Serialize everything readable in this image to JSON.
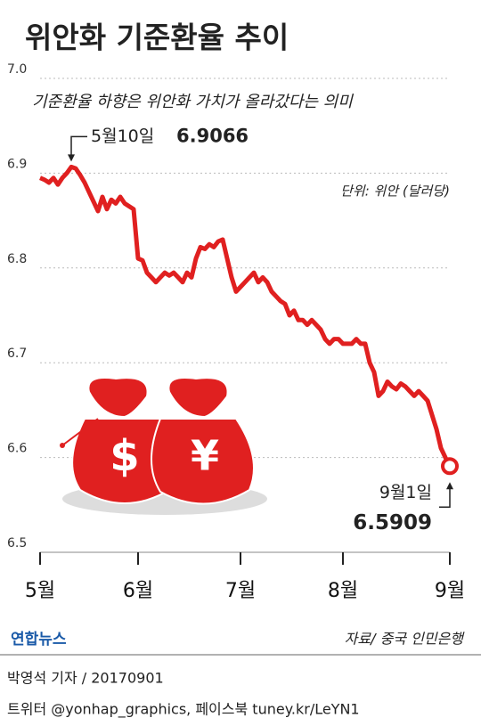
{
  "chart_data": {
    "type": "line",
    "title": "위안화 기준환율 추이",
    "subtitle": "기준환율 하향은 위안화 가치가 올라갔다는 의미",
    "unit": "단위: 위안 (달러당)",
    "categories": [
      "5월",
      null,
      null,
      null,
      null,
      null,
      null,
      null,
      null,
      null,
      null,
      null,
      null,
      null,
      null,
      null,
      null,
      null,
      null,
      null,
      null,
      null,
      "6월",
      null,
      null,
      null,
      null,
      null,
      null,
      null,
      null,
      null,
      null,
      null,
      null,
      null,
      null,
      null,
      null,
      null,
      null,
      null,
      null,
      null,
      null,
      "7월",
      null,
      null,
      null,
      null,
      null,
      null,
      null,
      null,
      null,
      null,
      null,
      null,
      null,
      null,
      null,
      null,
      null,
      null,
      null,
      null,
      null,
      null,
      "8월",
      null,
      null,
      null,
      null,
      null,
      null,
      null,
      null,
      null,
      null,
      null,
      null,
      null,
      null,
      null,
      null,
      null,
      null,
      null,
      null,
      null,
      null,
      null,
      "9월"
    ],
    "series": [
      {
        "color": "#e02020",
        "values": [
          6.895,
          6.893,
          6.89,
          6.895,
          6.888,
          6.895,
          6.9,
          6.9066,
          6.905,
          6.898,
          6.89,
          6.88,
          6.87,
          6.86,
          6.875,
          6.862,
          6.872,
          6.868,
          6.875,
          6.868,
          6.865,
          6.862,
          6.81,
          6.808,
          6.795,
          6.79,
          6.785,
          6.79,
          6.795,
          6.792,
          6.795,
          6.79,
          6.785,
          6.795,
          6.79,
          6.81,
          6.822,
          6.82,
          6.825,
          6.822,
          6.828,
          6.83,
          6.81,
          6.79,
          6.775,
          6.78,
          6.785,
          6.79,
          6.795,
          6.785,
          6.79,
          6.785,
          6.775,
          6.77,
          6.765,
          6.762,
          6.75,
          6.755,
          6.745,
          6.745,
          6.74,
          6.745,
          6.74,
          6.735,
          6.725,
          6.72,
          6.725,
          6.725,
          6.72,
          6.72,
          6.72,
          6.725,
          6.72,
          6.72,
          6.7,
          6.69,
          6.665,
          6.67,
          6.68,
          6.675,
          6.672,
          6.678,
          6.675,
          6.67,
          6.665,
          6.67,
          6.665,
          6.66,
          6.645,
          6.63,
          6.61,
          6.6,
          6.5909
        ]
      }
    ],
    "annotations": [
      "5월10일",
      "9월1일"
    ],
    "ylim": [
      6.5,
      7.0
    ],
    "yticks": [
      6.5,
      6.6,
      6.7,
      6.8,
      6.9,
      {
        "value": 7.0,
        "label": "7.0"
      }
    ],
    "grid": true,
    "logo": "연합뉴스",
    "source": "자료/ 중국 인민은행",
    "byline": "박영석 기자 / 20170901",
    "credits": "트위터 @yonhap_graphics, 페이스북 tuney.kr/LeYN1"
  }
}
